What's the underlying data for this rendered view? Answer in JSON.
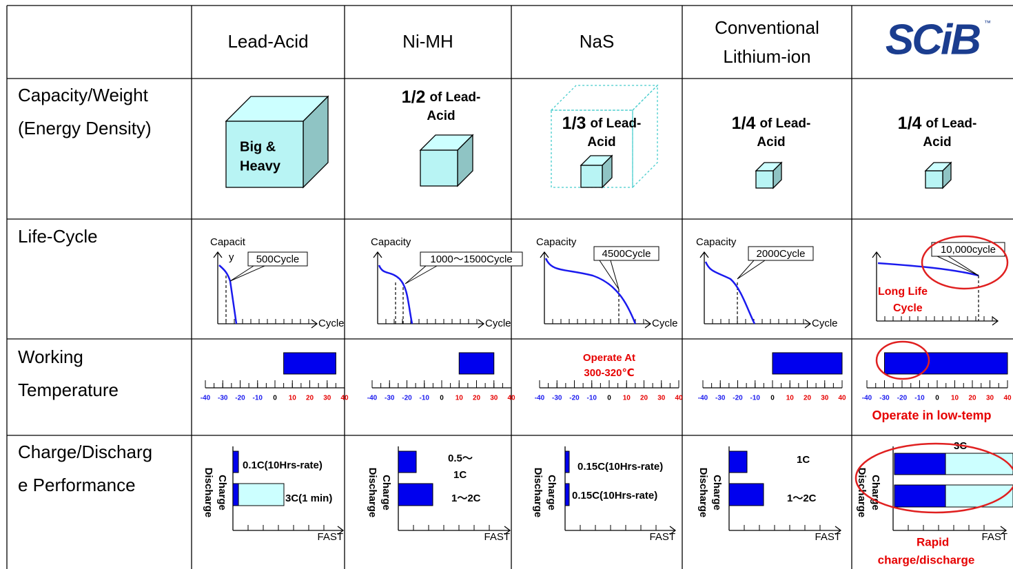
{
  "header": {
    "columns": [
      [
        "Lead-Acid"
      ],
      [
        "Ni-MH"
      ],
      [
        "NaS"
      ],
      [
        "Conventional",
        "Lithium-ion"
      ],
      [
        "SCiB"
      ]
    ],
    "trademark": "™"
  },
  "rows": {
    "capacity": {
      "label": [
        "Capacity/Weight",
        "(Energy Density)"
      ],
      "cells": [
        {
          "lines": [
            "Big &",
            "Heavy"
          ]
        },
        {
          "ratio": "1/2",
          "lines": [
            "of Lead-",
            "Acid"
          ]
        },
        {
          "ratio": "1/3",
          "lines": [
            "of Lead-",
            "Acid"
          ]
        },
        {
          "ratio": "1/4",
          "lines": [
            "of Lead-",
            "Acid"
          ]
        },
        {
          "ratio": "1/4",
          "lines": [
            "of Lead-",
            "Acid"
          ]
        }
      ]
    },
    "life_cycle": {
      "label": [
        "Life-Cycle"
      ],
      "cells": [
        {
          "y_label": [
            "Capacit",
            "y"
          ],
          "x_label": "Cycle",
          "callout": "500Cycle"
        },
        {
          "y_label": [
            "Capacity"
          ],
          "x_label": "Cycle",
          "callout": "1000～1500Cycle"
        },
        {
          "y_label": [
            "Capacity"
          ],
          "x_label": "Cycle",
          "callout": "4500Cycle"
        },
        {
          "y_label": [
            "Capacity"
          ],
          "x_label": "Cycle",
          "callout": "2000Cycle"
        },
        {
          "callout": "10,000cycle",
          "note": [
            "Long Life",
            "Cycle"
          ]
        }
      ]
    },
    "temperature": {
      "label": [
        "Working",
        "Temperature"
      ],
      "xlim": [
        -40,
        40
      ],
      "xticks": [
        -40,
        -30,
        -20,
        -10,
        0,
        10,
        20,
        30,
        40
      ],
      "cells": [
        {
          "range": [
            5,
            35
          ]
        },
        {
          "range": [
            10,
            30
          ]
        },
        {
          "note": [
            "Operate At",
            "300-320℃"
          ]
        },
        {
          "range": [
            0,
            40
          ]
        },
        {
          "range": [
            -30,
            40
          ],
          "note": [
            "Operate in low-temp"
          ]
        }
      ]
    },
    "charge": {
      "label": [
        "Charge/Discharg",
        "e Performance"
      ],
      "axis": {
        "charge": "Charge",
        "discharge": "Discharge",
        "fast": "FAST"
      },
      "cells": [
        {
          "charge_label": [
            "0.1C(10Hrs-rate)"
          ],
          "discharge_label": [
            "3C(1 min)"
          ]
        },
        {
          "charge_label": [
            "0.5～",
            "1C"
          ],
          "discharge_label": [
            "1～2C"
          ]
        },
        {
          "charge_label": [
            "0.15C(10Hrs-rate)"
          ],
          "discharge_label": [
            "0.15C(10Hrs-rate)"
          ]
        },
        {
          "charge_label": [
            "1C"
          ],
          "discharge_label": [
            "1～2C"
          ]
        },
        {
          "top_label": "3C",
          "note": [
            "Rapid",
            "charge/discharge"
          ]
        }
      ]
    }
  }
}
